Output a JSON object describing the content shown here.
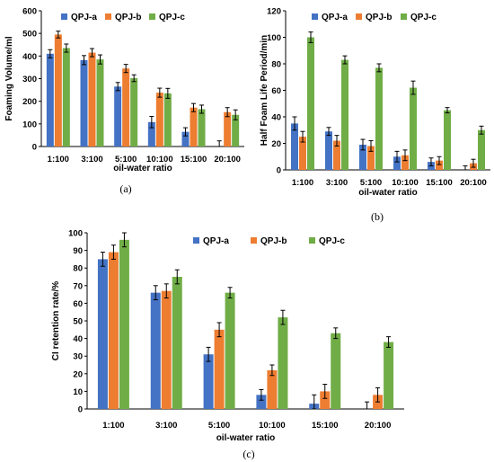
{
  "colors": {
    "QPJ-a": "#4472C4",
    "QPJ-b": "#ED7D31",
    "QPJ-c": "#70AD47",
    "axis": "#000000"
  },
  "chart_data": [
    {
      "type": "bar",
      "panel_label": "(a)",
      "xlabel": "oil-water ratio",
      "ylabel": "Foaming Volume/ml",
      "ylim": [
        0,
        600
      ],
      "yticks": [
        "0",
        "100",
        "200",
        "300",
        "400",
        "500",
        "600"
      ],
      "legend_position": "top",
      "categories": [
        "1:100",
        "3:100",
        "5:100",
        "10:100",
        "15:100",
        "20:100"
      ],
      "series": [
        {
          "name": "QPJ-a",
          "values": [
            410,
            382,
            265,
            108,
            65,
            0
          ],
          "errors": [
            18,
            20,
            18,
            25,
            18,
            25
          ]
        },
        {
          "name": "QPJ-b",
          "values": [
            495,
            415,
            345,
            238,
            172,
            152
          ],
          "errors": [
            15,
            18,
            18,
            20,
            18,
            20
          ]
        },
        {
          "name": "QPJ-c",
          "values": [
            435,
            385,
            302,
            235,
            165,
            140
          ],
          "errors": [
            18,
            20,
            15,
            22,
            18,
            22
          ]
        }
      ]
    },
    {
      "type": "bar",
      "panel_label": "(b)",
      "xlabel": "oil-water ratio",
      "ylabel": "Half Foam Life Period/min",
      "ylim": [
        0,
        120
      ],
      "yticks": [
        "0",
        "20",
        "40",
        "60",
        "80",
        "100",
        "120"
      ],
      "legend_position": "top",
      "categories": [
        "1:100",
        "3:100",
        "5:100",
        "10:100",
        "15:100",
        "20:100"
      ],
      "series": [
        {
          "name": "QPJ-a",
          "values": [
            35,
            29,
            19,
            10,
            6,
            0
          ],
          "errors": [
            5,
            3,
            4,
            4,
            3,
            3
          ]
        },
        {
          "name": "QPJ-b",
          "values": [
            25,
            22,
            18,
            11,
            7,
            5
          ],
          "errors": [
            4,
            4,
            4,
            4,
            3,
            3
          ]
        },
        {
          "name": "QPJ-c",
          "values": [
            100,
            83,
            77,
            62,
            45,
            30
          ],
          "errors": [
            4,
            3,
            3,
            5,
            2,
            3
          ]
        }
      ]
    },
    {
      "type": "bar",
      "panel_label": "(c)",
      "xlabel": "oil-water ratio",
      "ylabel": "CI retention rate/%",
      "ylim": [
        0,
        100
      ],
      "yticks": [
        "0",
        "10",
        "20",
        "30",
        "40",
        "50",
        "60",
        "70",
        "80",
        "90",
        "100"
      ],
      "legend_position": "top",
      "categories": [
        "1:100",
        "3:100",
        "5:100",
        "10:100",
        "15:100",
        "20:100"
      ],
      "series": [
        {
          "name": "QPJ-a",
          "values": [
            85,
            66,
            31,
            8,
            3,
            0
          ],
          "errors": [
            4,
            4,
            4,
            3,
            5,
            4
          ]
        },
        {
          "name": "QPJ-b",
          "values": [
            89,
            67,
            45,
            22,
            10,
            8
          ],
          "errors": [
            4,
            4,
            4,
            3,
            4,
            4
          ]
        },
        {
          "name": "QPJ-c",
          "values": [
            96,
            75,
            66,
            52,
            43,
            38
          ],
          "errors": [
            4,
            4,
            3,
            4,
            3,
            3
          ]
        }
      ]
    }
  ]
}
